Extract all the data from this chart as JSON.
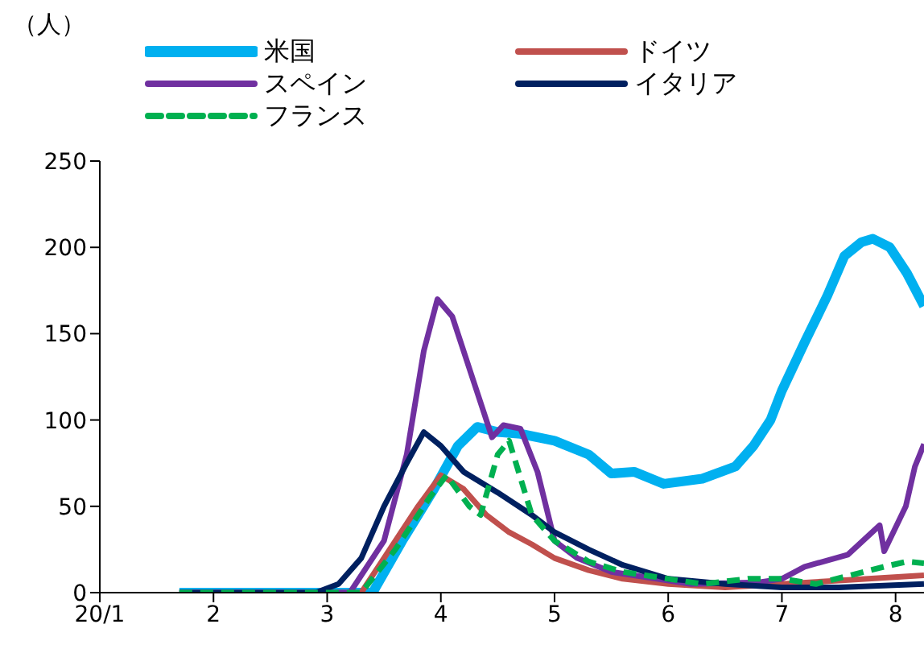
{
  "chart_data": {
    "type": "line",
    "ylabel": "（人）",
    "xlim": [
      1,
      8.25
    ],
    "xticks": [
      {
        "value": 1,
        "label": "20/1"
      },
      2,
      3,
      4,
      5,
      6,
      7,
      8
    ],
    "ylim": [
      0,
      250
    ],
    "yticks": [
      0,
      50,
      100,
      150,
      200,
      250
    ],
    "grid": false,
    "legend": "top",
    "series": [
      {
        "name": "米国",
        "color": "#00b0f0",
        "x": [
          1.7,
          3.4,
          3.66,
          3.94,
          4.15,
          4.32,
          4.5,
          4.7,
          5.0,
          5.3,
          5.5,
          5.7,
          5.96,
          6.3,
          6.59,
          6.75,
          6.9,
          7.0,
          7.2,
          7.4,
          7.55,
          7.7,
          7.8,
          7.95,
          8.1,
          8.25
        ],
        "values": [
          0,
          0,
          30,
          60,
          85,
          96,
          93,
          92,
          88,
          80,
          69,
          70,
          63,
          66,
          73,
          85,
          100,
          117,
          145,
          172,
          195,
          203,
          205,
          200,
          185,
          166
        ]
      },
      {
        "name": "ドイツ",
        "color": "#c0504d",
        "x": [
          1.7,
          3.3,
          3.6,
          3.8,
          4.0,
          4.2,
          4.4,
          4.6,
          4.8,
          5.0,
          5.3,
          5.6,
          6.0,
          6.5,
          7.0,
          7.5,
          8.25
        ],
        "values": [
          0,
          0,
          30,
          50,
          68,
          60,
          45,
          35,
          28,
          20,
          13,
          8,
          5,
          3,
          5,
          7,
          10
        ]
      },
      {
        "name": "スペイン",
        "color": "#7030a0",
        "x": [
          1.7,
          3.2,
          3.5,
          3.7,
          3.85,
          3.97,
          4.1,
          4.3,
          4.45,
          4.55,
          4.7,
          4.85,
          5.0,
          5.2,
          5.5,
          5.9,
          6.2,
          6.8,
          7.0,
          7.2,
          7.58,
          7.86,
          7.9,
          8.09,
          8.17,
          8.25
        ],
        "values": [
          0,
          0,
          30,
          80,
          140,
          170,
          160,
          120,
          90,
          97,
          95,
          70,
          30,
          20,
          12,
          8,
          5,
          6,
          8,
          15,
          22,
          39,
          24,
          50,
          73,
          86
        ]
      },
      {
        "name": "イタリア",
        "color": "#002060",
        "x": [
          1.7,
          2.9,
          3.1,
          3.3,
          3.5,
          3.7,
          3.85,
          4.0,
          4.2,
          4.5,
          4.8,
          5.0,
          5.3,
          5.6,
          6.0,
          6.5,
          7.0,
          7.5,
          8.25
        ],
        "values": [
          0,
          0,
          5,
          20,
          50,
          75,
          93,
          85,
          70,
          58,
          45,
          35,
          25,
          16,
          8,
          5,
          3,
          3,
          5
        ]
      },
      {
        "name": "フランス",
        "color": "#00b050",
        "line_style": "dashed",
        "x": [
          1.7,
          3.3,
          3.6,
          3.9,
          4.05,
          4.25,
          4.35,
          4.5,
          4.6,
          4.8,
          5.0,
          5.3,
          5.6,
          6.0,
          6.3,
          6.7,
          7.0,
          7.3,
          7.6,
          7.9,
          8.1,
          8.25
        ],
        "values": [
          0,
          0,
          25,
          55,
          68,
          50,
          45,
          80,
          88,
          45,
          30,
          18,
          12,
          8,
          5,
          8,
          8,
          5,
          10,
          15,
          18,
          17
        ]
      }
    ]
  }
}
